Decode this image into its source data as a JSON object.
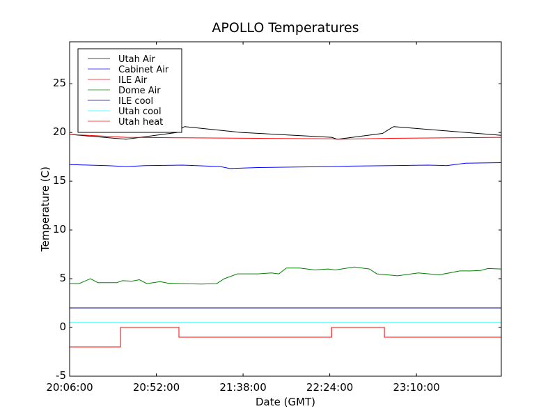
{
  "chart_data": {
    "type": "line",
    "title": "APOLLO Temperatures",
    "xlabel": "Date (GMT)",
    "ylabel": "Temperature (C)",
    "x_units": "minutes after 20:06:00",
    "xlim": [
      0,
      229
    ],
    "ylim": [
      -5,
      29.3
    ],
    "x_ticks": [
      {
        "value": 0,
        "label": "20:06:00"
      },
      {
        "value": 46,
        "label": "20:52:00"
      },
      {
        "value": 92,
        "label": "21:38:00"
      },
      {
        "value": 138,
        "label": "22:24:00"
      },
      {
        "value": 184,
        "label": "23:10:00"
      }
    ],
    "y_ticks": [
      {
        "value": -5,
        "label": "-5"
      },
      {
        "value": 0,
        "label": "0"
      },
      {
        "value": 5,
        "label": "5"
      },
      {
        "value": 10,
        "label": "10"
      },
      {
        "value": 15,
        "label": "15"
      },
      {
        "value": 20,
        "label": "20"
      },
      {
        "value": 25,
        "label": "25"
      }
    ],
    "grid": false,
    "legend_position": "top-left",
    "series": [
      {
        "name": "Utah Air",
        "color": "#000000",
        "x": [
          0,
          30,
          57,
          60,
          61,
          91,
          139,
          142,
          166,
          171,
          172,
          229
        ],
        "y": [
          19.8,
          19.3,
          20.0,
          20.5,
          20.6,
          20.0,
          19.5,
          19.3,
          19.9,
          20.5,
          20.6,
          19.7
        ]
      },
      {
        "name": "Cabinet Air",
        "color": "#0000ff",
        "x": [
          0,
          20,
          30,
          40,
          60,
          80,
          85,
          100,
          120,
          139,
          150,
          170,
          190,
          200,
          210,
          229
        ],
        "y": [
          16.7,
          16.6,
          16.5,
          16.6,
          16.65,
          16.5,
          16.3,
          16.4,
          16.45,
          16.5,
          16.55,
          16.6,
          16.65,
          16.6,
          16.85,
          16.9
        ]
      },
      {
        "name": "ILE Air",
        "color": "#ff0000",
        "x": [
          0,
          30,
          60,
          100,
          139,
          142,
          170,
          229
        ],
        "y": [
          19.8,
          19.5,
          19.45,
          19.4,
          19.35,
          19.3,
          19.4,
          19.5
        ]
      },
      {
        "name": "Dome Air",
        "color": "#008000",
        "x": [
          0,
          5,
          11,
          15,
          25,
          28,
          33,
          37,
          41,
          48,
          52,
          59,
          70,
          78,
          82,
          89,
          93,
          100,
          107,
          111,
          115,
          122,
          130,
          137,
          141,
          151,
          159,
          163,
          174,
          185,
          196,
          207,
          213,
          218,
          222,
          229
        ],
        "y": [
          4.5,
          4.5,
          5.0,
          4.6,
          4.6,
          4.8,
          4.75,
          4.9,
          4.5,
          4.7,
          4.55,
          4.5,
          4.45,
          4.5,
          5.0,
          5.5,
          5.5,
          5.5,
          5.6,
          5.5,
          6.1,
          6.1,
          5.9,
          6.0,
          5.9,
          6.2,
          6.0,
          5.5,
          5.3,
          5.6,
          5.4,
          5.8,
          5.8,
          5.85,
          6.05,
          6.0
        ]
      },
      {
        "name": "ILE cool",
        "color": "#000080",
        "x": [
          0,
          229
        ],
        "y": [
          2.0,
          2.0
        ]
      },
      {
        "name": "Utah cool",
        "color": "#00ffff",
        "x": [
          0,
          229
        ],
        "y": [
          0.5,
          0.5
        ]
      },
      {
        "name": "Utah heat",
        "color": "#ff0000",
        "x": [
          0,
          27,
          27,
          58,
          58,
          139,
          139,
          167,
          167,
          229
        ],
        "y": [
          -2,
          -2,
          0,
          0,
          -1,
          -1,
          0,
          0,
          -1,
          -1
        ]
      }
    ]
  }
}
